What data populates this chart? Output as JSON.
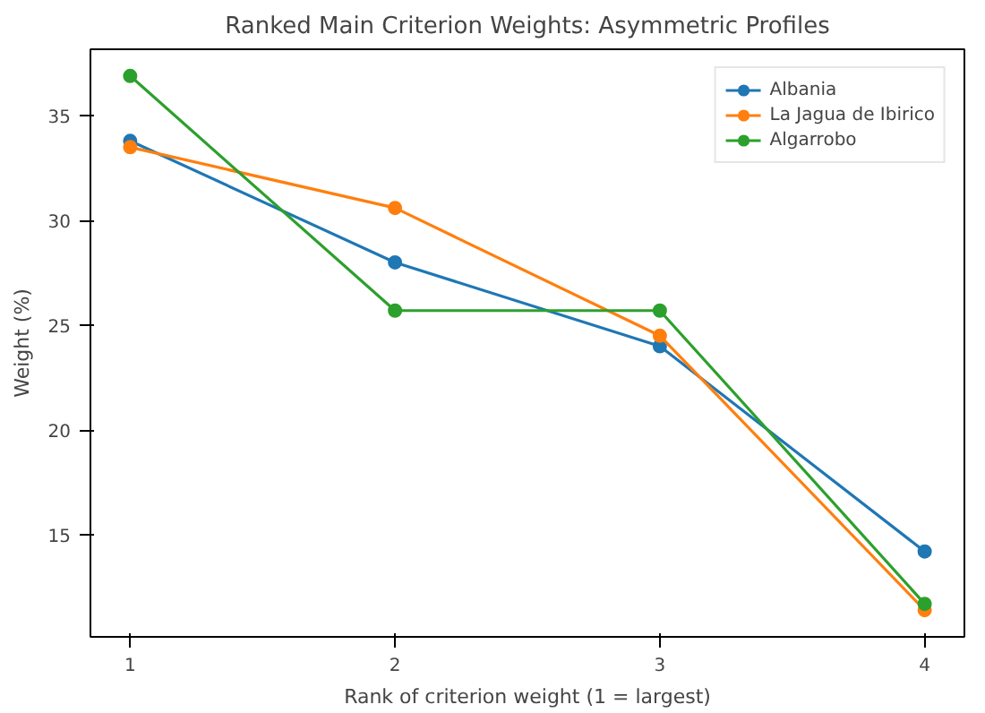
{
  "chart_data": {
    "type": "line",
    "title": "Ranked Main Criterion Weights: Asymmetric Profiles",
    "xlabel": "Rank of criterion weight (1 = largest)",
    "ylabel": "Weight (%)",
    "x": [
      1,
      2,
      3,
      4
    ],
    "series": [
      {
        "name": "Albania",
        "color": "#1f77b4",
        "values": [
          33.8,
          28.0,
          24.0,
          14.2
        ]
      },
      {
        "name": "La Jagua de Ibirico",
        "color": "#ff7f0e",
        "values": [
          33.5,
          30.6,
          24.5,
          11.4
        ]
      },
      {
        "name": "Algarrobo",
        "color": "#2ca02c",
        "values": [
          36.9,
          25.7,
          25.7,
          11.7
        ]
      }
    ],
    "xlim": [
      0.85,
      4.15
    ],
    "ylim": [
      10.125,
      38.175
    ],
    "xticks": [
      1,
      2,
      3,
      4
    ],
    "yticks": [
      15,
      20,
      25,
      30,
      35
    ],
    "grid": false,
    "legend": "top right",
    "marker": "circle",
    "line_style": "solid"
  }
}
